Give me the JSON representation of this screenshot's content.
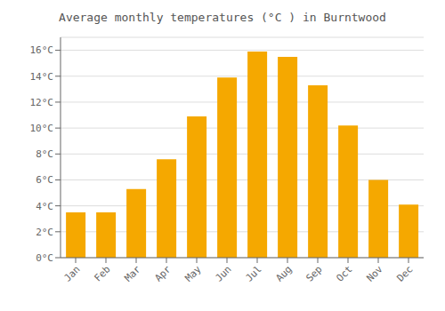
{
  "chart_data": {
    "type": "bar",
    "title": "Average monthly temperatures (°C ) in Burntwood",
    "categories": [
      "Jan",
      "Feb",
      "Mar",
      "Apr",
      "May",
      "Jun",
      "Jul",
      "Aug",
      "Sep",
      "Oct",
      "Nov",
      "Dec"
    ],
    "values": [
      3.5,
      3.5,
      5.3,
      7.6,
      10.9,
      13.9,
      15.9,
      15.5,
      13.3,
      10.2,
      6.0,
      4.1
    ],
    "color": "#F5A800",
    "ylim": [
      0,
      17
    ],
    "yticks": [
      {
        "value": 0,
        "label": "0°C"
      },
      {
        "value": 2,
        "label": "2°C"
      },
      {
        "value": 4,
        "label": "4°C"
      },
      {
        "value": 6,
        "label": "6°C"
      },
      {
        "value": 8,
        "label": "8°C"
      },
      {
        "value": 10,
        "label": "10°C"
      },
      {
        "value": 12,
        "label": "12°C"
      },
      {
        "value": 14,
        "label": "14°C"
      },
      {
        "value": 16,
        "label": "16°C"
      }
    ],
    "grid": true
  }
}
